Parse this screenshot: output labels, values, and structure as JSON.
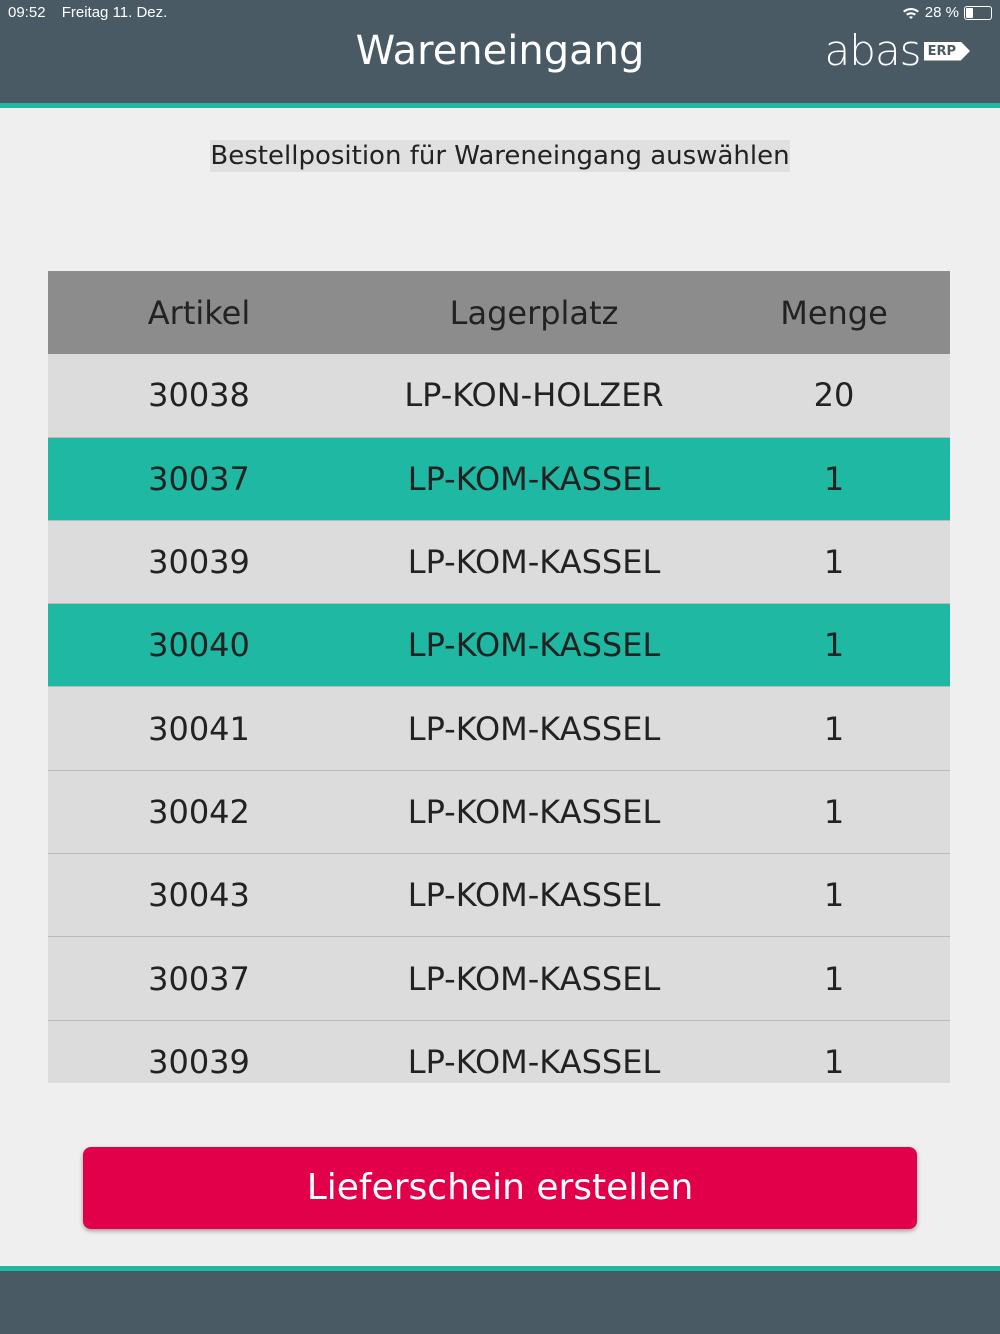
{
  "status_bar": {
    "time": "09:52",
    "date": "Freitag 11. Dez.",
    "battery": "28 %",
    "battery_level": 0.28
  },
  "header": {
    "title": "Wareneingang",
    "logo": "abas",
    "logo_badge": "ERP"
  },
  "subtitle": "Bestellposition für Wareneingang auswählen",
  "table": {
    "columns": [
      "Artikel",
      "Lagerplatz",
      "Menge"
    ],
    "rows": [
      {
        "artikel": "30038",
        "lagerplatz": "LP-KON-HOLZER",
        "menge": "20",
        "selected": false
      },
      {
        "artikel": "30037",
        "lagerplatz": "LP-KOM-KASSEL",
        "menge": "1",
        "selected": true
      },
      {
        "artikel": "30039",
        "lagerplatz": "LP-KOM-KASSEL",
        "menge": "1",
        "selected": false
      },
      {
        "artikel": "30040",
        "lagerplatz": "LP-KOM-KASSEL",
        "menge": "1",
        "selected": true
      },
      {
        "artikel": "30041",
        "lagerplatz": "LP-KOM-KASSEL",
        "menge": "1",
        "selected": false
      },
      {
        "artikel": "30042",
        "lagerplatz": "LP-KOM-KASSEL",
        "menge": "1",
        "selected": false
      },
      {
        "artikel": "30043",
        "lagerplatz": "LP-KOM-KASSEL",
        "menge": "1",
        "selected": false
      },
      {
        "artikel": "30037",
        "lagerplatz": "LP-KOM-KASSEL",
        "menge": "1",
        "selected": false
      },
      {
        "artikel": "30039",
        "lagerplatz": "LP-KOM-KASSEL",
        "menge": "1",
        "selected": false
      }
    ]
  },
  "button": {
    "label": "Lieferschein erstellen"
  },
  "colors": {
    "header": "#4a5a65",
    "accent": "#1fb8a2",
    "button": "#e2004a",
    "row": "#dcdcdc",
    "table_header": "#8c8c8c"
  }
}
